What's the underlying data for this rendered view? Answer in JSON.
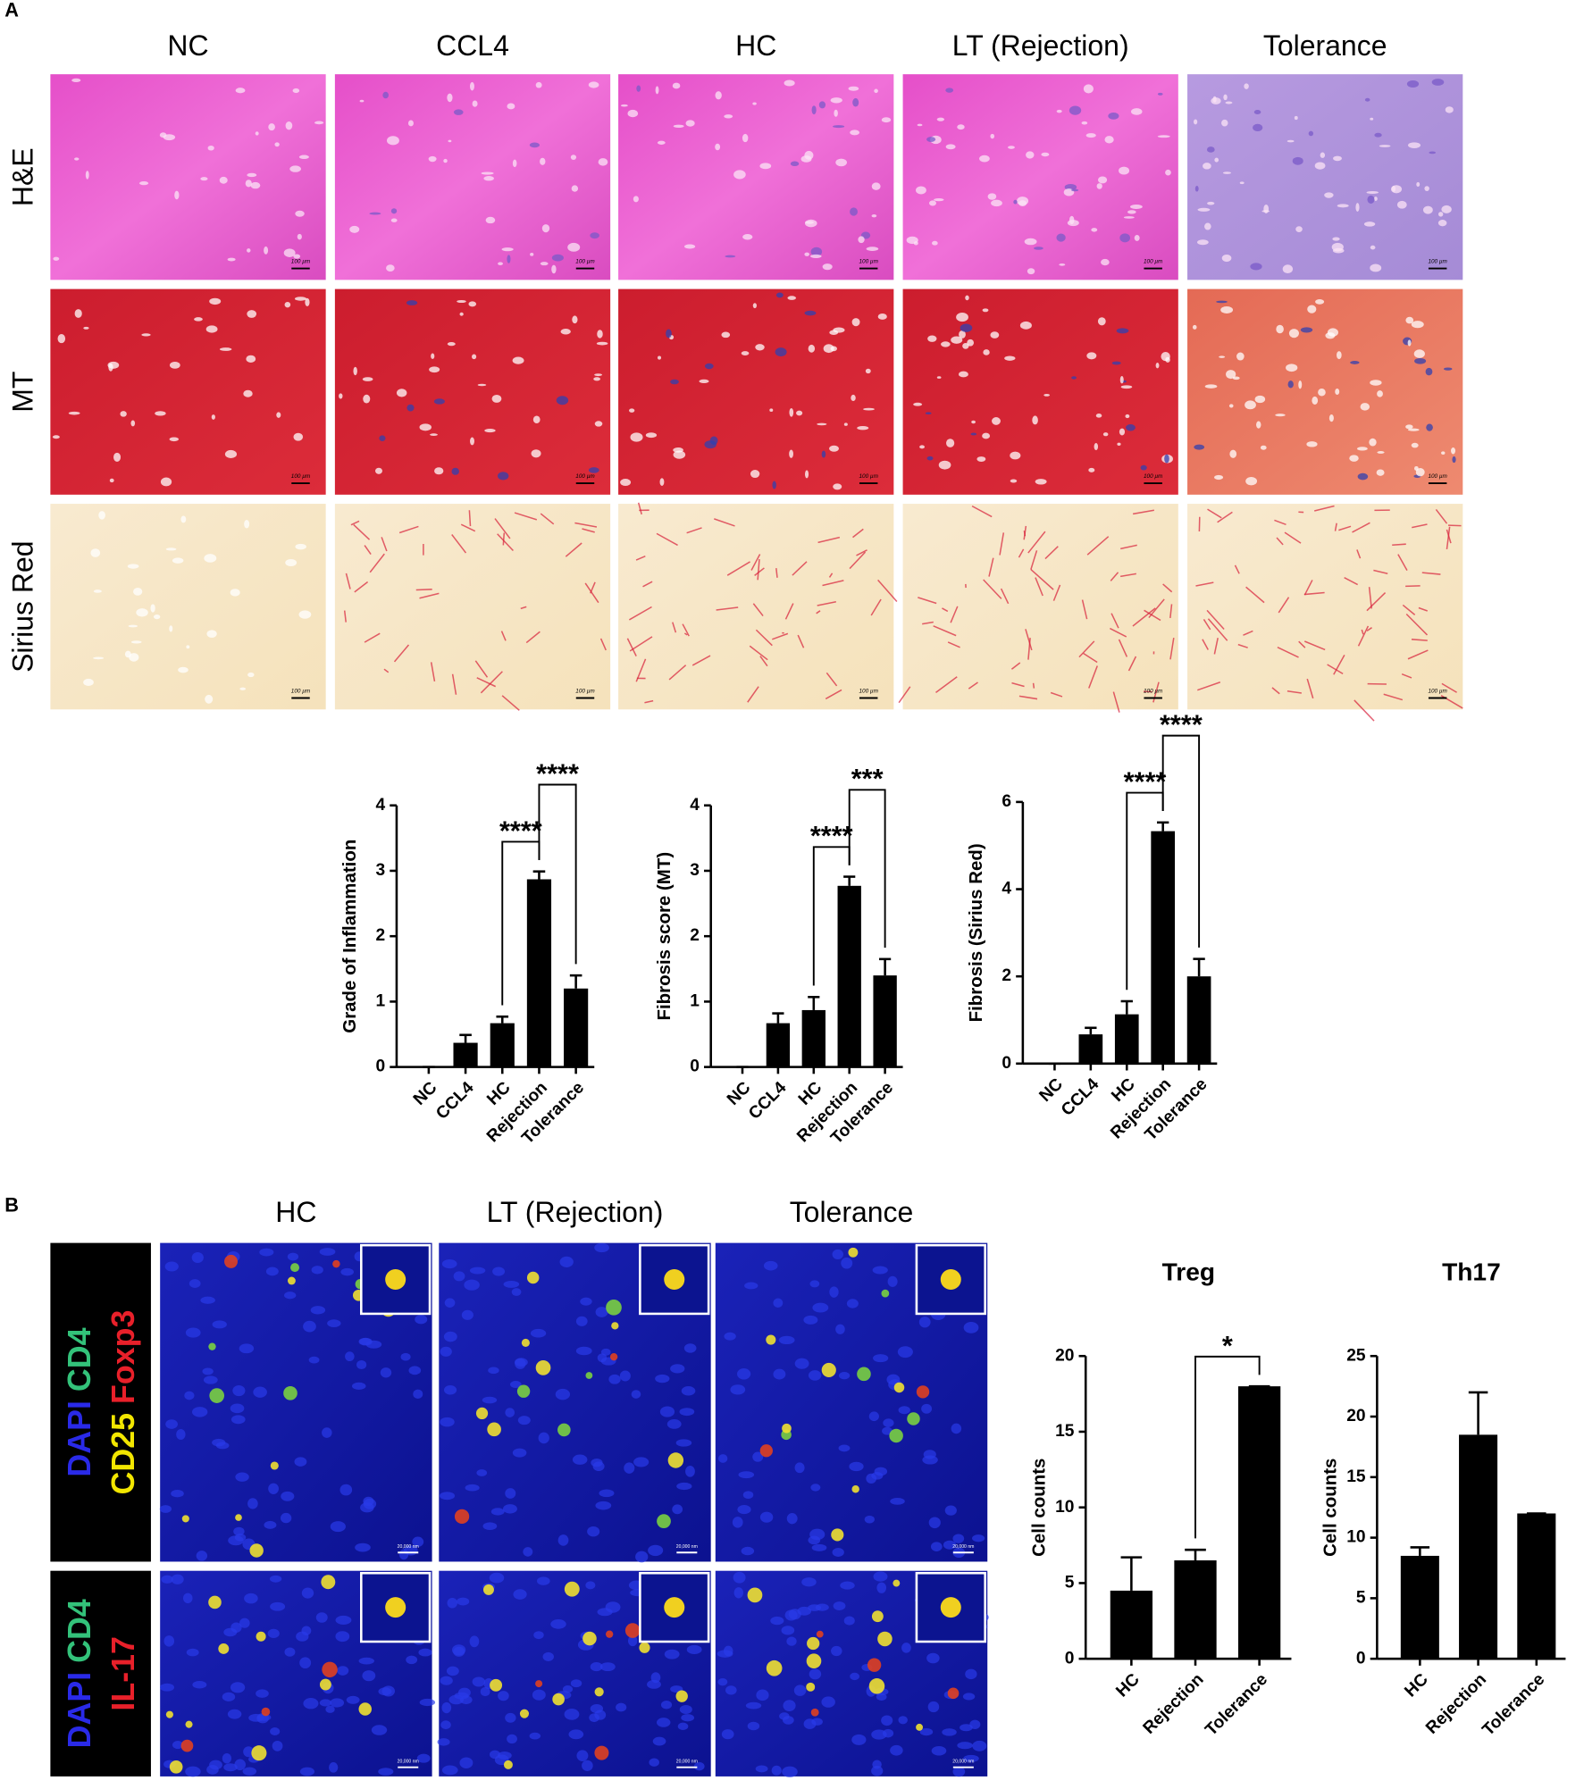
{
  "figure": {
    "panel_a_label": "A",
    "panel_b_label": "B",
    "a_columns": [
      "NC",
      "CCL4",
      "HC",
      "LT (Rejection)",
      "Tolerance"
    ],
    "a_rows": [
      "H&E",
      "MT",
      "Sirius Red"
    ],
    "a_scale_bar": "100 µm",
    "b_columns": [
      "HC",
      "LT (Rejection)",
      "Tolerance"
    ],
    "b_rows": [
      {
        "lines": [
          [
            {
              "text": "DAPI",
              "color": "#2a2ae8"
            },
            {
              "text": "CD4",
              "color": "#33c27a"
            }
          ],
          [
            {
              "text": "CD25",
              "color": "#f2e600"
            },
            {
              "text": "Foxp3",
              "color": "#e8202a"
            }
          ]
        ]
      },
      {
        "lines": [
          [
            {
              "text": "DAPI",
              "color": "#2a2ae8"
            },
            {
              "text": "CD4",
              "color": "#33c27a"
            }
          ],
          [
            {
              "text": "IL-17",
              "color": "#e8202a"
            }
          ]
        ]
      }
    ],
    "b_scale_bar": "20,000 nm"
  },
  "chart_data": [
    {
      "type": "bar",
      "y_label": "Grade of Inflammation",
      "categories": [
        "NC",
        "CCL4",
        "HC",
        "Rejection",
        "Tolerance"
      ],
      "values": [
        0,
        0.37,
        0.67,
        2.87,
        1.2
      ],
      "errors": [
        0,
        0.12,
        0.1,
        0.12,
        0.2
      ],
      "color": "#000000",
      "ylim": [
        0,
        4
      ],
      "yticks": [
        0,
        1,
        2,
        3,
        4
      ],
      "annotations": [
        {
          "from": 2,
          "to": 3,
          "text": "****"
        },
        {
          "from": 3,
          "to": 4,
          "text": "****"
        }
      ]
    },
    {
      "type": "bar",
      "y_label": "Fibrosis score (MT)",
      "categories": [
        "NC",
        "CCL4",
        "HC",
        "Rejection",
        "Tolerance"
      ],
      "values": [
        0,
        0.67,
        0.87,
        2.77,
        1.4
      ],
      "errors": [
        0,
        0.15,
        0.2,
        0.14,
        0.25
      ],
      "color": "#000000",
      "ylim": [
        0,
        4
      ],
      "yticks": [
        0,
        1,
        2,
        3,
        4
      ],
      "annotations": [
        {
          "from": 2,
          "to": 3,
          "text": "****"
        },
        {
          "from": 3,
          "to": 4,
          "text": "***"
        }
      ]
    },
    {
      "type": "bar",
      "y_label": "Fibrosis (Sirius Red)",
      "categories": [
        "NC",
        "CCL4",
        "HC",
        "Rejection",
        "Tolerance"
      ],
      "values": [
        0,
        0.67,
        1.13,
        5.33,
        2.0
      ],
      "errors": [
        0,
        0.15,
        0.3,
        0.2,
        0.4
      ],
      "color": "#000000",
      "ylim": [
        0,
        6
      ],
      "yticks": [
        0,
        2,
        4,
        6
      ],
      "annotations": [
        {
          "from": 2,
          "to": 3,
          "text": "****"
        },
        {
          "from": 3,
          "to": 4,
          "text": "****"
        }
      ]
    },
    {
      "type": "bar",
      "title": "Treg",
      "y_label": "Cell counts",
      "categories": [
        "HC",
        "Rejection",
        "Tolerance"
      ],
      "values": [
        4.5,
        6.5,
        18
      ],
      "errors": [
        2.2,
        0.7,
        0
      ],
      "color": "#000000",
      "ylim": [
        0,
        20
      ],
      "yticks": [
        0,
        5,
        10,
        15,
        20
      ],
      "annotations": [
        {
          "from": 1,
          "to": 2,
          "text": "*"
        }
      ]
    },
    {
      "type": "bar",
      "title": "Th17",
      "y_label": "Cell counts",
      "categories": [
        "HC",
        "Rejection",
        "Tolerance"
      ],
      "values": [
        8.5,
        18.5,
        12
      ],
      "errors": [
        0.7,
        3.5,
        0
      ],
      "color": "#000000",
      "ylim": [
        0,
        25
      ],
      "yticks": [
        0,
        5,
        10,
        15,
        20,
        25
      ],
      "annotations": []
    }
  ]
}
